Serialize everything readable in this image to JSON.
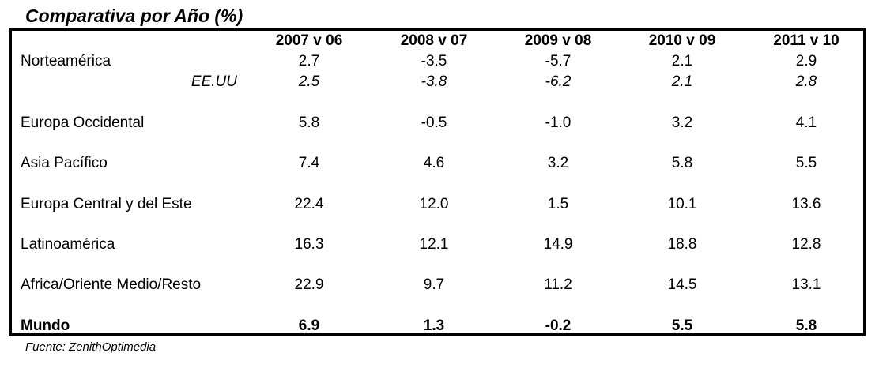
{
  "title": "Comparativa por Año (%)",
  "source": "Fuente: ZenithOptimedia",
  "columns": [
    "2007 v 06",
    "2008 v 07",
    "2009 v 08",
    "2010 v 09",
    "2011 v 10"
  ],
  "rows": {
    "norteamerica": {
      "label": "Norteamérica",
      "values": [
        "2.7",
        "-3.5",
        "-5.7",
        "2.1",
        "2.9"
      ]
    },
    "eeuu": {
      "label": "EE.UU",
      "values": [
        "2.5",
        "-3.8",
        "-6.2",
        "2.1",
        "2.8"
      ]
    },
    "europa_occidental": {
      "label": "Europa Occidental",
      "values": [
        "5.8",
        "-0.5",
        "-1.0",
        "3.2",
        "4.1"
      ]
    },
    "asia_pacifico": {
      "label": "Asia Pacífico",
      "values": [
        "7.4",
        "4.6",
        "3.2",
        "5.8",
        "5.5"
      ]
    },
    "europa_central": {
      "label": "Europa Central y del Este",
      "values": [
        "22.4",
        "12.0",
        "1.5",
        "10.1",
        "13.6"
      ]
    },
    "latinoamerica": {
      "label": "Latinoamérica",
      "values": [
        "16.3",
        "12.1",
        "14.9",
        "18.8",
        "12.8"
      ]
    },
    "africa": {
      "label": "Africa/Oriente Medio/Resto",
      "values": [
        "22.9",
        "9.7",
        "11.2",
        "14.5",
        "13.1"
      ]
    },
    "mundo": {
      "label": "Mundo",
      "values": [
        "6.9",
        "1.3",
        "-0.2",
        "5.5",
        "5.8"
      ]
    }
  }
}
